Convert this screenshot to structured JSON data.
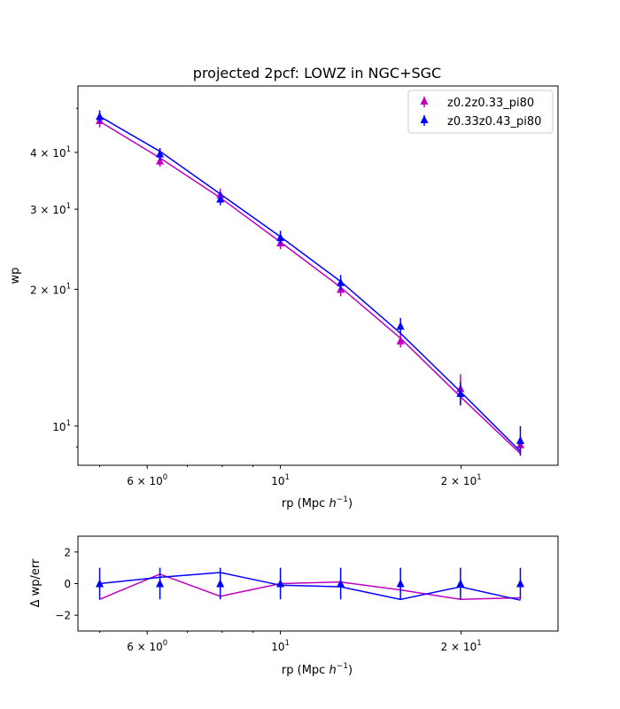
{
  "chart_data": [
    {
      "type": "line",
      "title": "projected 2pcf: LOWZ in NGC+SGC",
      "xlabel_main": "rp (Mpc ",
      "xlabel_unit": "h",
      "xlabel_exp": "−1",
      "xlabel_close": ")",
      "ylabel": "wp",
      "xscale": "log",
      "yscale": "log",
      "xlim": [
        4.6,
        29.0
      ],
      "ylim": [
        8.2,
        56.0
      ],
      "x_ticks": [
        {
          "value": 6,
          "mant": "6 × 10",
          "exp": "0"
        },
        {
          "value": 10,
          "mant": "10",
          "exp": "1"
        },
        {
          "value": 20,
          "mant": "2 × 10",
          "exp": "1"
        }
      ],
      "y_ticks": [
        {
          "value": 10,
          "mant": "10",
          "exp": "1"
        },
        {
          "value": 20,
          "mant": "2 × 10",
          "exp": "1"
        },
        {
          "value": 30,
          "mant": "3 × 10",
          "exp": "1"
        },
        {
          "value": 40,
          "mant": "4 × 10",
          "exp": "1"
        }
      ],
      "legend_position": "upper right",
      "series": [
        {
          "name": "z0.2z0.33_pi80",
          "color": "#bf00bf",
          "x": [
            5.0,
            6.3,
            7.94,
            10.0,
            12.6,
            15.85,
            19.95,
            25.1
          ],
          "points": [
            47.0,
            38.3,
            32.3,
            25.3,
            20.0,
            15.4,
            12.1,
            9.1
          ],
          "errors": [
            1.6,
            1.1,
            1.0,
            0.8,
            0.7,
            0.5,
            0.9,
            0.4
          ],
          "model": [
            46.8,
            38.9,
            31.8,
            25.4,
            20.2,
            15.6,
            11.6,
            8.7
          ]
        },
        {
          "name": "z0.33z0.43_pi80",
          "color": "#0000ff",
          "x": [
            5.0,
            6.3,
            7.94,
            10.0,
            12.6,
            15.85,
            19.95,
            25.1
          ],
          "points": [
            48.0,
            39.7,
            31.6,
            26.0,
            20.7,
            16.6,
            11.8,
            9.3
          ],
          "errors": [
            1.5,
            1.2,
            1.0,
            0.9,
            0.8,
            0.7,
            0.7,
            0.7
          ],
          "model": [
            48.0,
            40.2,
            32.4,
            26.1,
            20.8,
            16.0,
            11.9,
            8.8
          ]
        }
      ]
    },
    {
      "type": "line",
      "xlabel_main": "rp (Mpc ",
      "xlabel_unit": "h",
      "xlabel_exp": "−1",
      "xlabel_close": ")",
      "ylabel": "Δ wp/err",
      "xscale": "log",
      "xlim": [
        4.6,
        29.0
      ],
      "ylim": [
        -3,
        3
      ],
      "x_ticks": [
        {
          "value": 6,
          "mant": "6 × 10",
          "exp": "0"
        },
        {
          "value": 10,
          "mant": "10",
          "exp": "1"
        },
        {
          "value": 20,
          "mant": "2 × 10",
          "exp": "1"
        }
      ],
      "y_ticks": [
        {
          "value": -2,
          "label": "−2"
        },
        {
          "value": 0,
          "label": "0"
        },
        {
          "value": 2,
          "label": "2"
        }
      ],
      "points": {
        "x": [
          5.0,
          6.3,
          7.94,
          10.0,
          12.6,
          15.85,
          19.95,
          25.1
        ],
        "y": 0,
        "err": 1,
        "color": "#0000ff"
      },
      "series": [
        {
          "color": "#bf00bf",
          "x": [
            5.0,
            6.3,
            7.94,
            10.0,
            12.6,
            15.85,
            19.95,
            25.1
          ],
          "values": [
            -1.0,
            0.6,
            -0.8,
            0.0,
            0.1,
            -0.4,
            -1.0,
            -0.9
          ]
        },
        {
          "color": "#0000ff",
          "x": [
            5.0,
            6.3,
            7.94,
            10.0,
            12.6,
            15.85,
            19.95,
            25.1
          ],
          "values": [
            0.0,
            0.4,
            0.7,
            -0.1,
            -0.2,
            -1.0,
            -0.2,
            -1.05
          ]
        }
      ]
    }
  ]
}
